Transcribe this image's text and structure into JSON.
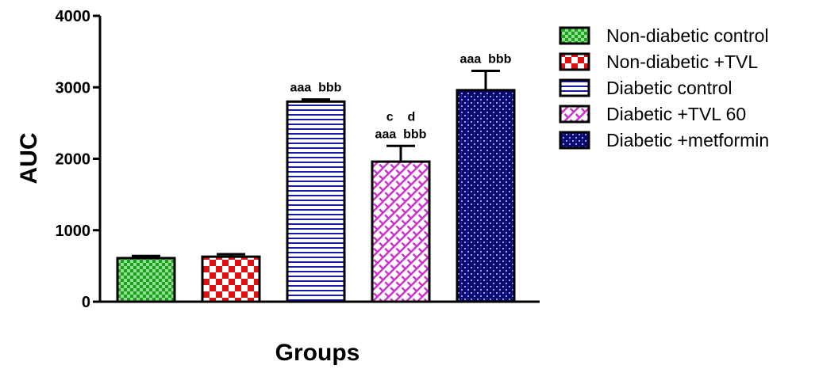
{
  "chart_data": {
    "type": "bar",
    "xlabel": "Groups",
    "ylabel": "AUC",
    "ylim": [
      0,
      4000
    ],
    "yticks": [
      0,
      1000,
      2000,
      3000,
      4000
    ],
    "grid": false,
    "legend_position": "right",
    "categories": [
      "Non-diabetic control",
      "Non-diabetic +TVL",
      "Diabetic control",
      "Diabetic +TVL 60",
      "Diabetic +metformin"
    ],
    "values": [
      610,
      630,
      2800,
      1960,
      2960
    ],
    "errors": [
      30,
      35,
      30,
      220,
      270
    ],
    "annotations": [
      [],
      [],
      [
        "aaa  bbb"
      ],
      [
        "c    d",
        "aaa  bbb"
      ],
      [
        "aaa  bbb"
      ]
    ],
    "colors": [
      "#2db82d",
      "#e01010",
      "#1a1aa8",
      "#cc33cc",
      "#0a0a6e"
    ],
    "patterns": [
      "check-small",
      "check-large",
      "horizontal-lines",
      "diagonal-hatch",
      "dots-grid"
    ]
  }
}
